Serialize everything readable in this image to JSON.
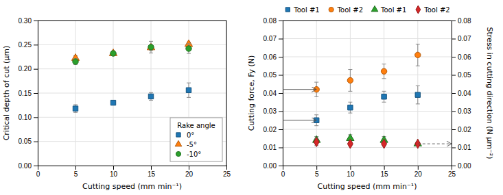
{
  "chart_data": [
    {
      "type": "scatter",
      "x_label": "Cutting speed (mm min⁻¹)",
      "y_label": "Critical depth of cut (µm)",
      "x": [
        5,
        10,
        15,
        20
      ],
      "series": [
        {
          "name": "0°",
          "marker": "square",
          "values": [
            0.118,
            0.13,
            0.143,
            0.156
          ],
          "errors": [
            0.008,
            0.004,
            0.008,
            0.015
          ]
        },
        {
          "name": "-5°",
          "marker": "triangle",
          "values": [
            0.222,
            0.232,
            0.244,
            0.251
          ],
          "errors": [
            0.005,
            0.004,
            0.006,
            0.004
          ]
        },
        {
          "name": "-10°",
          "marker": "circle",
          "values": [
            0.215,
            0.232,
            0.245,
            0.242
          ],
          "errors": [
            0.006,
            0.004,
            0.012,
            0.01
          ]
        }
      ],
      "xlim": [
        0,
        25
      ],
      "ylim": [
        0,
        0.3
      ],
      "xticks": [
        0,
        5,
        10,
        15,
        20,
        25
      ],
      "yticks": [
        {
          "value": 0,
          "label": "0.00"
        },
        0.05,
        {
          "value": 0.1,
          "label": "0.10"
        },
        0.15,
        {
          "value": 0.2,
          "label": "0.20"
        },
        0.25,
        {
          "value": 0.3,
          "label": "0.30"
        }
      ],
      "grid": true,
      "legend": "lower right",
      "legend_title": "Rake angle"
    },
    {
      "type": "scatter",
      "x_label": "Cutting speed (mm min⁻¹)",
      "y_label": "Cutting force, Fy (N)",
      "y2_label": "Stress in cutting direction (N µm⁻²)",
      "x": [
        5,
        10,
        15,
        20
      ],
      "series": [
        {
          "name": "Tool #1",
          "marker": "square",
          "values": [
            0.025,
            0.032,
            0.038,
            0.039
          ],
          "errors": [
            0.003,
            0.003,
            0.003,
            0.005
          ]
        },
        {
          "name": "Tool #2",
          "marker": "circle",
          "values": [
            0.042,
            0.047,
            0.052,
            0.061
          ],
          "errors": [
            0.004,
            0.006,
            0.004,
            0.006
          ]
        },
        {
          "name": "Tool #1",
          "marker": "triangle",
          "axis": "y2",
          "values": [
            0.014,
            0.015,
            0.014,
            0.012
          ],
          "errors": [
            0.002,
            0.002,
            0.002,
            0.001
          ]
        },
        {
          "name": "Tool #2",
          "marker": "diamond",
          "axis": "y2",
          "values": [
            0.013,
            0.012,
            0.012,
            0.012
          ],
          "errors": [
            0.002,
            0.001,
            0.001,
            0.001
          ]
        }
      ],
      "arrows": [
        {
          "from": [
            0,
            0.025
          ],
          "to": [
            5,
            0.025
          ],
          "line_style": "solid"
        },
        {
          "from": [
            0,
            0.042
          ],
          "to": [
            5,
            0.042
          ],
          "line_style": "solid"
        },
        {
          "from": [
            20,
            0.012
          ],
          "to": [
            25,
            0.012
          ],
          "line_style": "dashed"
        }
      ],
      "xlim": [
        0,
        25
      ],
      "ylim": [
        0,
        0.08
      ],
      "xticks": [
        0,
        5,
        10,
        15,
        20,
        25
      ],
      "yticks": [
        {
          "value": 0,
          "label": "0.00"
        },
        0.01,
        0.02,
        0.03,
        0.04,
        0.05,
        0.06,
        0.07,
        0.08
      ],
      "y2lim": [
        0,
        0.08
      ],
      "y2ticks": [
        {
          "value": 0,
          "label": "0.00"
        },
        0.01,
        0.02,
        0.03,
        0.04,
        0.05,
        0.06,
        0.07,
        0.08
      ],
      "grid": true,
      "legend": "top"
    }
  ]
}
